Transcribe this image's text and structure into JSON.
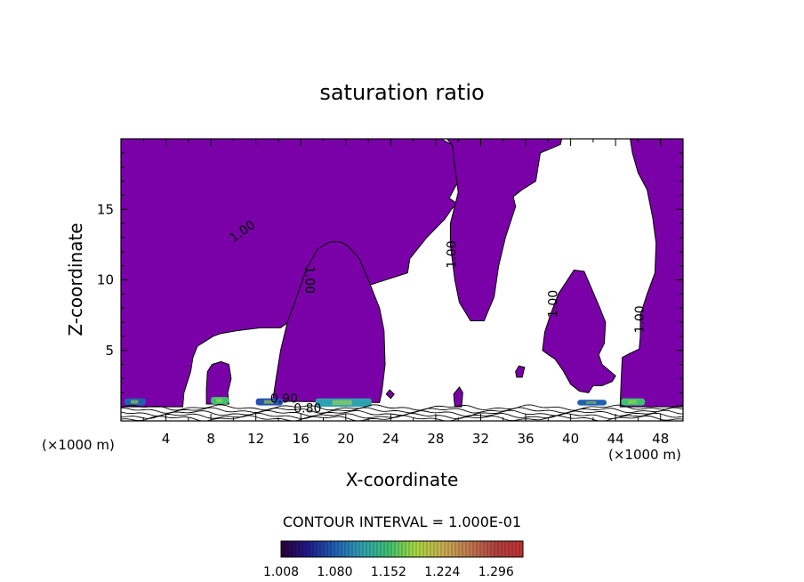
{
  "chart_data": {
    "type": "contour",
    "title": "saturation ratio",
    "xlabel": "X-coordinate",
    "ylabel": "Z-coordinate",
    "x_unit_left": "(×1000 m)",
    "x_unit_right": "(×1000 m)",
    "xlim": [
      0,
      50
    ],
    "ylim": [
      0,
      20
    ],
    "x_ticks": [
      4,
      8,
      12,
      16,
      20,
      24,
      28,
      32,
      36,
      40,
      44,
      48
    ],
    "y_ticks": [
      5,
      10,
      15
    ],
    "contour_interval_text": "CONTOUR INTERVAL = 1.000E-01",
    "contour_labels": [
      {
        "text": "1.00",
        "x": 11,
        "z": 13.2,
        "angle": -35
      },
      {
        "text": "1.00",
        "x": 16.4,
        "z": 10,
        "angle": 90
      },
      {
        "text": "1.00",
        "x": 29.8,
        "z": 11.8,
        "angle": -90
      },
      {
        "text": "1.00",
        "x": 38.8,
        "z": 8.3,
        "angle": -90
      },
      {
        "text": "1.00",
        "x": 46.5,
        "z": 7.2,
        "angle": -90
      },
      {
        "text": "0.80",
        "x": 16.6,
        "z": 0.6,
        "angle": 0
      },
      {
        "text": "0.90",
        "x": 14.5,
        "z": 1.3,
        "angle": 0
      }
    ],
    "colorbar": {
      "ticks": [
        "1.008",
        "1.080",
        "1.152",
        "1.224",
        "1.296"
      ],
      "min": 1.008,
      "max": 1.332,
      "stops": [
        "#2a0033",
        "#1f1a8c",
        "#1f5fb0",
        "#2fa0b0",
        "#3fc070",
        "#a8d840",
        "#c8b050",
        "#c07850",
        "#b04040",
        "#c03030"
      ]
    },
    "fill_color": "#7a00a8",
    "cloud_regions": [
      {
        "name": "left-region",
        "points": [
          [
            0,
            1
          ],
          [
            0,
            20
          ],
          [
            28.5,
            20
          ],
          [
            29.6,
            19.5
          ],
          [
            29.9,
            18.5
          ],
          [
            30,
            17
          ],
          [
            29.2,
            15.8
          ],
          [
            29.9,
            15.4
          ],
          [
            29.4,
            15
          ],
          [
            28.8,
            14.3
          ],
          [
            27.2,
            13
          ],
          [
            25.7,
            11.5
          ],
          [
            25.5,
            10.5
          ],
          [
            22,
            9.6
          ],
          [
            18.4,
            8.6
          ],
          [
            16.6,
            8
          ],
          [
            14.2,
            6.6
          ],
          [
            12.4,
            6.6
          ],
          [
            10.3,
            6.4
          ],
          [
            8.9,
            6.2
          ],
          [
            8.2,
            6
          ],
          [
            7.6,
            5.7
          ],
          [
            6.8,
            5.3
          ],
          [
            6.4,
            4.5
          ],
          [
            6.2,
            3.5
          ],
          [
            5.6,
            2
          ],
          [
            5.5,
            1
          ]
        ]
      },
      {
        "name": "center-blob",
        "points": [
          [
            13.5,
            1.4
          ],
          [
            13.8,
            3
          ],
          [
            14.2,
            5
          ],
          [
            14.8,
            7
          ],
          [
            15.5,
            8.5
          ],
          [
            16.5,
            10.8
          ],
          [
            17.5,
            12.2
          ],
          [
            18.6,
            12.7
          ],
          [
            19.5,
            12.7
          ],
          [
            20.2,
            12.4
          ],
          [
            21.2,
            11.5
          ],
          [
            22,
            10
          ],
          [
            23,
            8
          ],
          [
            23.4,
            6.4
          ],
          [
            23.5,
            4
          ],
          [
            23.2,
            2
          ],
          [
            23,
            1.3
          ]
        ]
      },
      {
        "name": "small-blob-8",
        "points": [
          [
            7.6,
            1.2
          ],
          [
            7.6,
            2.3
          ],
          [
            7.7,
            3.5
          ],
          [
            8.1,
            4
          ],
          [
            8.9,
            4.2
          ],
          [
            9.6,
            4
          ],
          [
            9.8,
            3
          ],
          [
            9.5,
            2
          ],
          [
            9.6,
            1.2
          ]
        ]
      },
      {
        "name": "top-center",
        "points": [
          [
            29,
            20
          ],
          [
            39.2,
            20
          ],
          [
            39.1,
            19.6
          ],
          [
            37.3,
            19
          ],
          [
            36.9,
            17
          ],
          [
            35.7,
            16.4
          ],
          [
            34.9,
            15.9
          ],
          [
            35.1,
            15.2
          ],
          [
            34.2,
            13
          ],
          [
            33.6,
            11
          ],
          [
            33.2,
            8.8
          ],
          [
            32.3,
            7.1
          ],
          [
            31.1,
            7.1
          ],
          [
            30.1,
            8.4
          ],
          [
            29.7,
            10
          ],
          [
            29.3,
            12.5
          ],
          [
            29.3,
            14
          ],
          [
            30,
            16.2
          ],
          [
            29.7,
            18
          ],
          [
            29.5,
            19.5
          ]
        ]
      },
      {
        "name": "right-center-blob",
        "points": [
          [
            37.5,
            5
          ],
          [
            37.7,
            6.3
          ],
          [
            38.2,
            7.5
          ],
          [
            38.9,
            9
          ],
          [
            40.3,
            10.7
          ],
          [
            41.2,
            10.6
          ],
          [
            41.8,
            9.5
          ],
          [
            42.6,
            8
          ],
          [
            43.1,
            7
          ],
          [
            43,
            5.5
          ],
          [
            42.5,
            4.7
          ],
          [
            42.8,
            4
          ],
          [
            44,
            3.2
          ],
          [
            43.7,
            2.8
          ],
          [
            42.8,
            2.5
          ],
          [
            42,
            2.5
          ],
          [
            41.6,
            2
          ],
          [
            40.8,
            2.1
          ],
          [
            40,
            2.6
          ],
          [
            39.3,
            3.6
          ],
          [
            38.6,
            4.4
          ],
          [
            38,
            4.7
          ]
        ]
      },
      {
        "name": "right-region",
        "points": [
          [
            44.4,
            1
          ],
          [
            44.5,
            3
          ],
          [
            44.6,
            4.5
          ],
          [
            45.3,
            4.8
          ],
          [
            46.1,
            5.1
          ],
          [
            46.2,
            6
          ],
          [
            46.2,
            7.5
          ],
          [
            46.8,
            9
          ],
          [
            47.5,
            10.5
          ],
          [
            47.6,
            12.6
          ],
          [
            47.3,
            14.4
          ],
          [
            46.8,
            16.4
          ],
          [
            46,
            17.6
          ],
          [
            45.5,
            19
          ],
          [
            45.3,
            20
          ],
          [
            50,
            20
          ],
          [
            50,
            1
          ]
        ]
      },
      {
        "name": "speck-30",
        "points": [
          [
            29.7,
            1
          ],
          [
            29.6,
            1.9
          ],
          [
            30.1,
            2.4
          ],
          [
            30.4,
            2
          ],
          [
            30.3,
            1
          ]
        ]
      },
      {
        "name": "speck-35",
        "points": [
          [
            35.1,
            3.5
          ],
          [
            35.4,
            3.9
          ],
          [
            35.9,
            3.8
          ],
          [
            35.7,
            3.1
          ],
          [
            35.2,
            3.1
          ]
        ]
      },
      {
        "name": "speck-24",
        "points": [
          [
            23.6,
            1.9
          ],
          [
            23.9,
            2.2
          ],
          [
            24.3,
            1.9
          ],
          [
            24,
            1.6
          ]
        ]
      }
    ],
    "high_value_patches": [
      {
        "x1": 0.3,
        "x2": 2.2,
        "z1": 1.1,
        "z2": 1.6,
        "color": "#1f5fb0"
      },
      {
        "x1": 8.0,
        "x2": 9.6,
        "z1": 1.2,
        "z2": 1.7,
        "color": "#3fc070"
      },
      {
        "x1": 12.0,
        "x2": 14.4,
        "z1": 1.1,
        "z2": 1.6,
        "color": "#2a50b0"
      },
      {
        "x1": 17.3,
        "x2": 22.3,
        "z1": 1.0,
        "z2": 1.6,
        "color": "#2fa0b0"
      },
      {
        "x1": 40.6,
        "x2": 43.2,
        "z1": 1.1,
        "z2": 1.5,
        "color": "#1f5fb0"
      },
      {
        "x1": 44.5,
        "x2": 46.6,
        "z1": 1.1,
        "z2": 1.6,
        "color": "#3fc070"
      }
    ]
  }
}
